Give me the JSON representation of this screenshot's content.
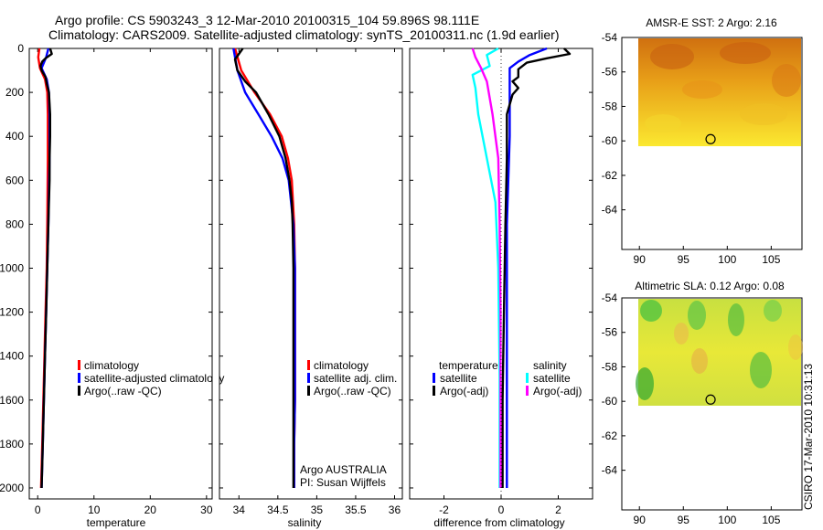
{
  "header": {
    "line1": "Argo profile: CS 5903243_3 12-Mar-2010 20100315_104 59.896S 98.111E",
    "line2": "Climatology: CARS2009. Satellite-adjusted climatology: synTS_20100311.nc (1.9d earlier)"
  },
  "footer": {
    "credit": "CSIRO 17-Mar-2010 10:31:13",
    "argo_line1": "Argo AUSTRALIA",
    "argo_line2": "PI: Susan Wijffels"
  },
  "colors": {
    "climatology": "#ff0000",
    "satellite": "#0000ff",
    "argo": "#000000",
    "sat_salinity": "#00ffff",
    "argo_salinity": "#ff00ff"
  },
  "chart_data": [
    {
      "type": "line",
      "id": "temperature",
      "xlabel": "temperature",
      "xlim": [
        -1.5,
        31
      ],
      "ylim": [
        0,
        2050
      ],
      "xticks": [
        0,
        10,
        20,
        30
      ],
      "yticks": [
        0,
        200,
        400,
        600,
        800,
        1000,
        1200,
        1400,
        1600,
        1800,
        2000
      ],
      "legend": [
        "climatology",
        "satellite-adjusted climatology",
        "Argo(..raw -QC)"
      ],
      "series": [
        {
          "name": "climatology",
          "color": "#ff0000",
          "points": [
            [
              0.3,
              0
            ],
            [
              0.1,
              40
            ],
            [
              0.4,
              90
            ],
            [
              1.3,
              140
            ],
            [
              1.7,
              200
            ],
            [
              1.8,
              300
            ],
            [
              1.8,
              500
            ],
            [
              1.7,
              800
            ],
            [
              1.6,
              1000
            ],
            [
              1.4,
              1200
            ],
            [
              1.2,
              1400
            ],
            [
              1.0,
              1600
            ],
            [
              0.8,
              1800
            ],
            [
              0.6,
              2000
            ]
          ]
        },
        {
          "name": "satellite-adjusted climatology",
          "color": "#0000ff",
          "points": [
            [
              1.9,
              0
            ],
            [
              1.5,
              40
            ],
            [
              0.7,
              90
            ],
            [
              1.6,
              140
            ],
            [
              2.0,
              200
            ],
            [
              2.1,
              300
            ],
            [
              2.1,
              500
            ],
            [
              1.9,
              800
            ],
            [
              1.7,
              1000
            ],
            [
              1.5,
              1200
            ],
            [
              1.3,
              1400
            ],
            [
              1.1,
              1600
            ],
            [
              0.9,
              1800
            ],
            [
              0.7,
              2000
            ]
          ]
        },
        {
          "name": "Argo(..raw -QC)",
          "color": "#000000",
          "points": [
            [
              2.2,
              0
            ],
            [
              2.5,
              25
            ],
            [
              1.4,
              45
            ],
            [
              0.8,
              60
            ],
            [
              0.5,
              80
            ],
            [
              0.7,
              100
            ],
            [
              1.4,
              130
            ],
            [
              1.6,
              160
            ],
            [
              2.0,
              200
            ],
            [
              2.2,
              300
            ],
            [
              2.2,
              400
            ],
            [
              2.1,
              500
            ],
            [
              2.1,
              600
            ],
            [
              2.0,
              700
            ],
            [
              1.9,
              800
            ],
            [
              1.7,
              1000
            ],
            [
              1.5,
              1200
            ],
            [
              1.3,
              1400
            ],
            [
              1.1,
              1600
            ],
            [
              0.9,
              1800
            ],
            [
              0.7,
              2000
            ]
          ]
        }
      ]
    },
    {
      "type": "line",
      "id": "salinity",
      "xlabel": "salinity",
      "xlim": [
        33.75,
        36.1
      ],
      "ylim": [
        0,
        2050
      ],
      "xticks": [
        34,
        34.5,
        35,
        35.5,
        36
      ],
      "legend": [
        "climatology",
        "satellite adj. clim.",
        "Argo(..raw -QC)"
      ],
      "series": [
        {
          "name": "climatology",
          "color": "#ff0000",
          "points": [
            [
              33.95,
              0
            ],
            [
              34.03,
              100
            ],
            [
              34.2,
              200
            ],
            [
              34.4,
              300
            ],
            [
              34.55,
              400
            ],
            [
              34.63,
              500
            ],
            [
              34.68,
              600
            ],
            [
              34.71,
              800
            ],
            [
              34.72,
              1000
            ],
            [
              34.72,
              1200
            ],
            [
              34.72,
              1400
            ],
            [
              34.72,
              1600
            ],
            [
              34.71,
              1800
            ],
            [
              34.71,
              2000
            ]
          ]
        },
        {
          "name": "satellite adj. clim.",
          "color": "#0000ff",
          "points": [
            [
              33.93,
              0
            ],
            [
              33.98,
              100
            ],
            [
              34.08,
              200
            ],
            [
              34.25,
              300
            ],
            [
              34.42,
              400
            ],
            [
              34.56,
              500
            ],
            [
              34.64,
              600
            ],
            [
              34.7,
              800
            ],
            [
              34.72,
              1000
            ],
            [
              34.72,
              1200
            ],
            [
              34.72,
              1400
            ],
            [
              34.72,
              1600
            ],
            [
              34.71,
              1800
            ],
            [
              34.71,
              2000
            ]
          ]
        },
        {
          "name": "Argo(..raw -QC)",
          "color": "#000000",
          "points": [
            [
              34.05,
              0
            ],
            [
              33.95,
              50
            ],
            [
              33.98,
              100
            ],
            [
              34.08,
              150
            ],
            [
              34.22,
              200
            ],
            [
              34.38,
              300
            ],
            [
              34.52,
              400
            ],
            [
              34.6,
              500
            ],
            [
              34.65,
              600
            ],
            [
              34.68,
              700
            ],
            [
              34.69,
              800
            ],
            [
              34.7,
              1000
            ],
            [
              34.7,
              1200
            ],
            [
              34.7,
              1400
            ],
            [
              34.7,
              1600
            ],
            [
              34.7,
              1800
            ],
            [
              34.7,
              2000
            ]
          ]
        }
      ]
    },
    {
      "type": "line",
      "id": "difference",
      "xlabel": "difference from climatology",
      "xlim": [
        -3.2,
        3.2
      ],
      "ylim": [
        0,
        2050
      ],
      "xticks": [
        -2,
        0,
        2
      ],
      "legend_temperature_title": "temperature",
      "legend_salinity_title": "salinity",
      "legend": [
        "satellite",
        "Argo(-adj)",
        "satellite",
        "Argo(-adj)"
      ],
      "series": [
        {
          "name": "temperature satellite",
          "color": "#0000ff",
          "points": [
            [
              1.6,
              0
            ],
            [
              1.0,
              30
            ],
            [
              0.6,
              60
            ],
            [
              0.3,
              90
            ],
            [
              0.3,
              140
            ],
            [
              0.3,
              200
            ],
            [
              0.3,
              400
            ],
            [
              0.2,
              800
            ],
            [
              0.2,
              1200
            ],
            [
              0.2,
              1600
            ],
            [
              0.2,
              2000
            ]
          ]
        },
        {
          "name": "temperature Argo(-adj)",
          "color": "#000000",
          "points": [
            [
              2.2,
              0
            ],
            [
              2.4,
              25
            ],
            [
              1.6,
              45
            ],
            [
              0.9,
              65
            ],
            [
              0.6,
              95
            ],
            [
              0.6,
              130
            ],
            [
              0.4,
              150
            ],
            [
              0.6,
              180
            ],
            [
              0.4,
              210
            ],
            [
              0.2,
              300
            ],
            [
              0.2,
              500
            ],
            [
              0.15,
              800
            ],
            [
              0.1,
              1200
            ],
            [
              0.05,
              1600
            ],
            [
              0.05,
              2000
            ]
          ]
        },
        {
          "name": "salinity satellite",
          "color": "#00ffff",
          "points": [
            [
              -0.1,
              0
            ],
            [
              -0.5,
              30
            ],
            [
              -0.4,
              80
            ],
            [
              -1.0,
              120
            ],
            [
              -0.9,
              180
            ],
            [
              -0.8,
              300
            ],
            [
              -0.5,
              500
            ],
            [
              -0.2,
              700
            ],
            [
              -0.1,
              1000
            ],
            [
              -0.05,
              1500
            ],
            [
              -0.05,
              2000
            ]
          ]
        },
        {
          "name": "salinity Argo(-adj)",
          "color": "#ff00ff",
          "points": [
            [
              -1.0,
              0
            ],
            [
              -0.9,
              40
            ],
            [
              -0.7,
              90
            ],
            [
              -0.5,
              150
            ],
            [
              -0.3,
              300
            ],
            [
              -0.1,
              500
            ],
            [
              -0.05,
              800
            ],
            [
              -0.02,
              1200
            ],
            [
              -0.02,
              2000
            ]
          ]
        }
      ]
    },
    {
      "type": "heatmap",
      "id": "sst-map",
      "title": "AMSR-E SST: 2 Argo: 2.16",
      "xlim": [
        88,
        108.5
      ],
      "ylim": [
        -66.3,
        -54
      ],
      "xticks": [
        90,
        95,
        100,
        105
      ],
      "yticks": [
        -54,
        -56,
        -58,
        -60,
        -62,
        -64
      ],
      "data_lat_range": [
        -60,
        -54
      ],
      "marker": {
        "lon": 98.1,
        "lat": -59.9
      }
    },
    {
      "type": "heatmap",
      "id": "sla-map",
      "title": "Altimetric SLA: 0.12 Argo: 0.08",
      "xlim": [
        88,
        108.5
      ],
      "ylim": [
        -66.3,
        -54
      ],
      "xticks": [
        90,
        95,
        100,
        105
      ],
      "yticks": [
        -54,
        -56,
        -58,
        -60,
        -62,
        -64
      ],
      "data_lat_range": [
        -60,
        -54
      ],
      "marker": {
        "lon": 98.1,
        "lat": -59.9
      }
    }
  ]
}
